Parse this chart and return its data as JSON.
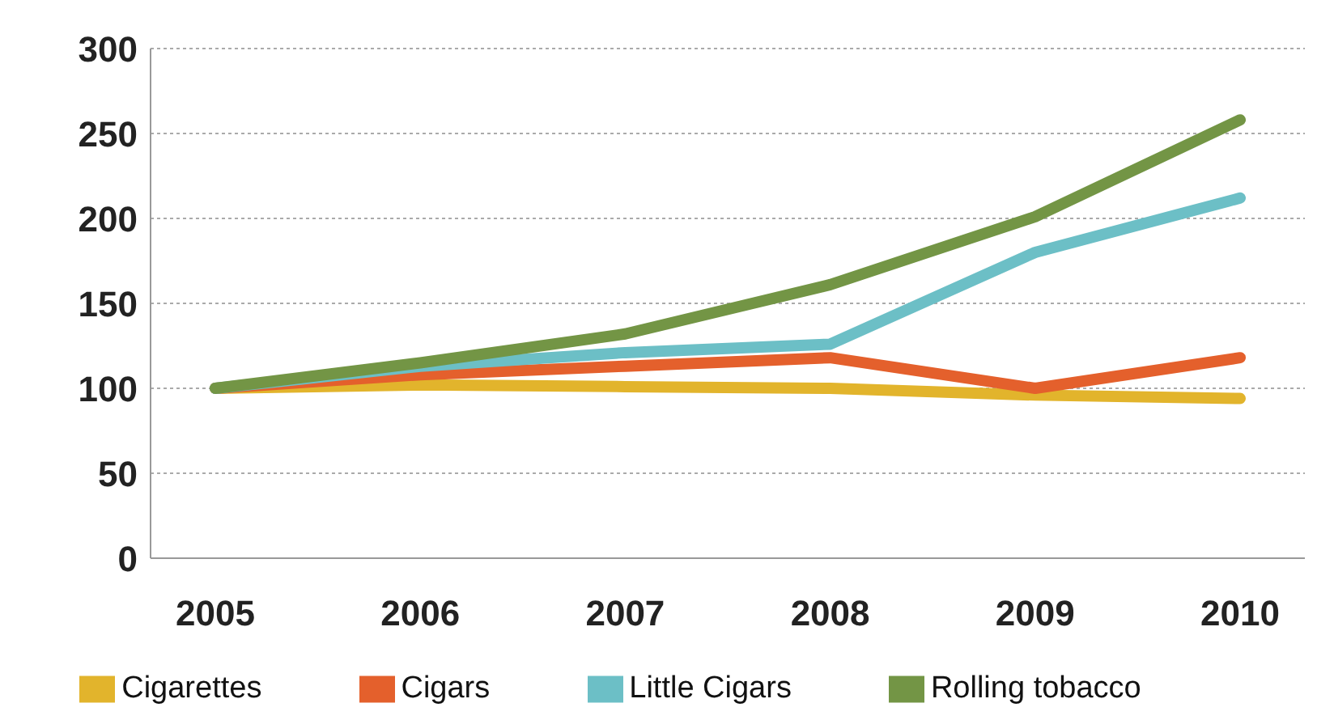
{
  "chart_data": {
    "type": "line",
    "categories": [
      "2005",
      "2006",
      "2007",
      "2008",
      "2009",
      "2010"
    ],
    "series": [
      {
        "name": "Cigarettes",
        "color": "#e2b42c",
        "values": [
          100,
          102,
          101,
          100,
          96,
          94
        ]
      },
      {
        "name": "Cigars",
        "color": "#e4602c",
        "values": [
          100,
          108,
          113,
          118,
          100,
          118
        ]
      },
      {
        "name": "Little Cigars",
        "color": "#6cbfc6",
        "values": [
          100,
          113,
          121,
          126,
          180,
          212
        ]
      },
      {
        "name": "Rolling tobacco",
        "color": "#739545",
        "values": [
          100,
          115,
          132,
          161,
          201,
          258
        ]
      }
    ],
    "ylim": [
      0,
      300
    ],
    "yticks": [
      0,
      50,
      100,
      150,
      200,
      250,
      300
    ],
    "grid": "y",
    "legend": "bottom",
    "marker": "none",
    "line_style": "solid"
  }
}
